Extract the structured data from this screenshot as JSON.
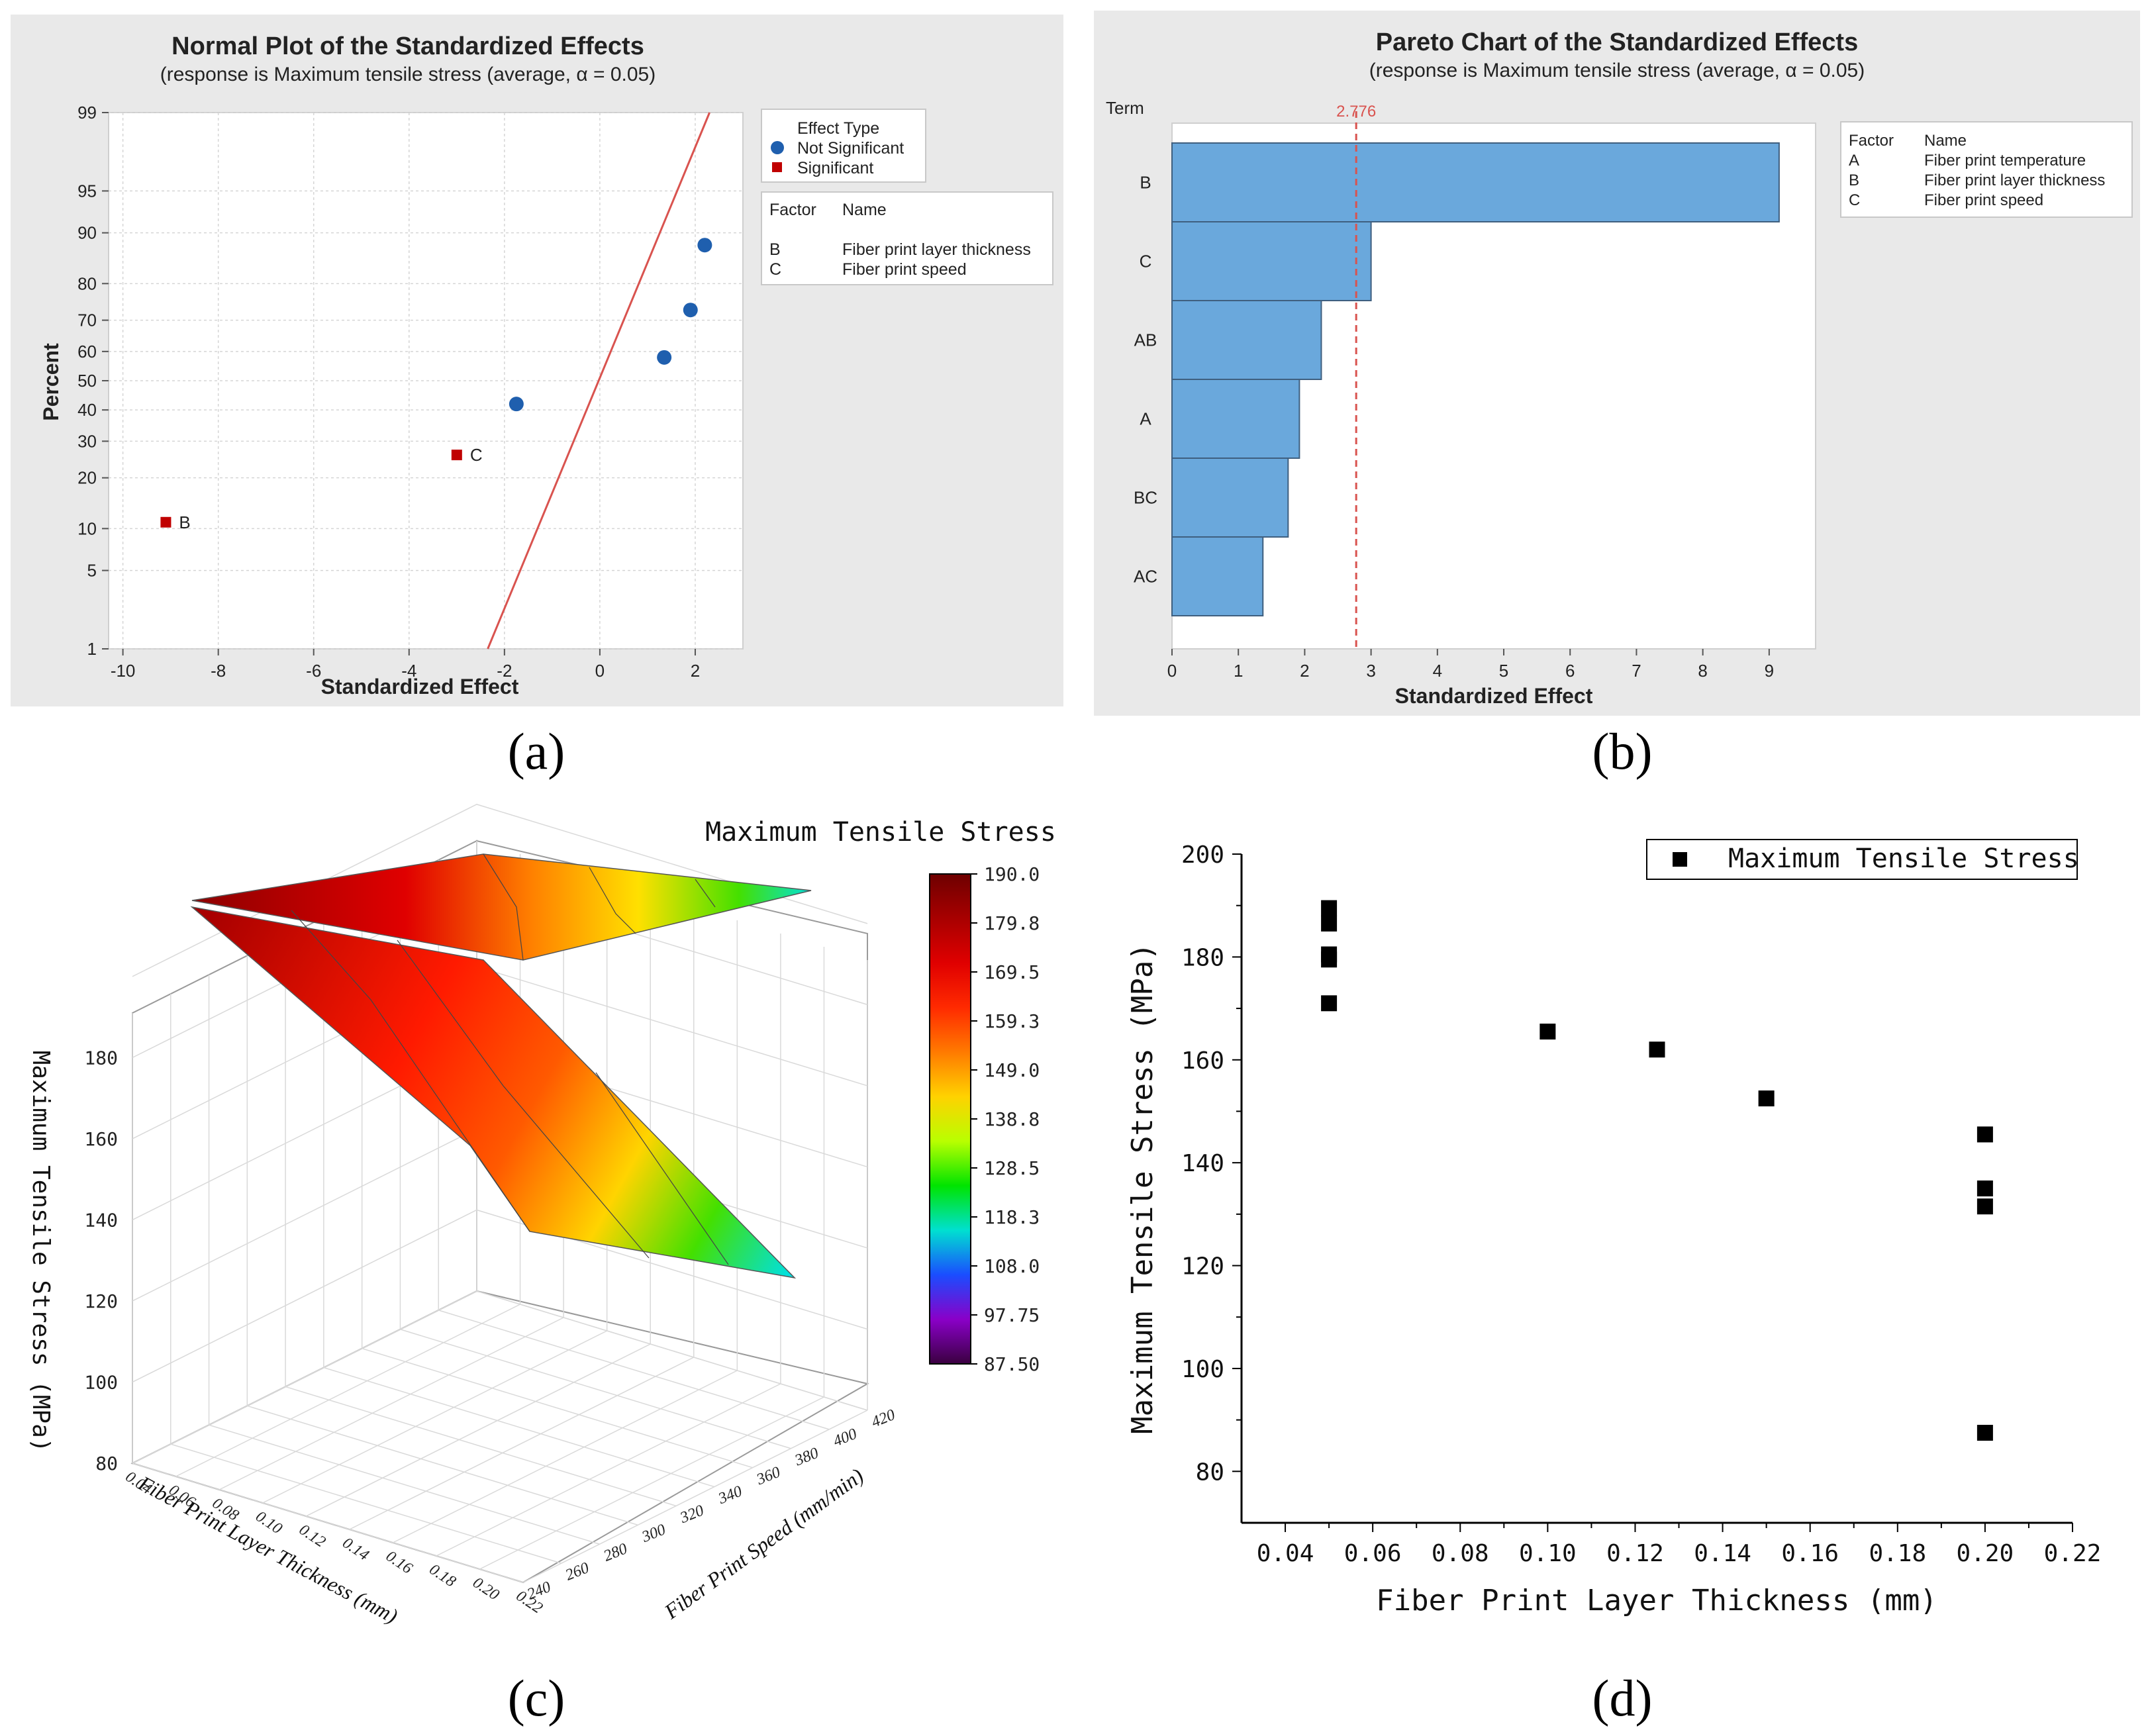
{
  "captions": {
    "a": "(a)",
    "b": "(b)",
    "c": "(c)",
    "d": "(d)"
  },
  "chart_data": [
    {
      "id": "a",
      "type": "scatter",
      "title": "Normal Plot of the Standardized Effects",
      "subtitle": "(response is Maximum tensile stress (average, α = 0.05)",
      "xlabel": "Standardized Effect",
      "ylabel": "Percent",
      "xlim": [
        -10.3,
        3.0
      ],
      "xticks": [
        -10,
        -8,
        -6,
        -4,
        -2,
        0,
        2
      ],
      "yticks": [
        1,
        5,
        10,
        20,
        30,
        40,
        50,
        60,
        70,
        80,
        90,
        95,
        99
      ],
      "reference_line": {
        "from": [
          -2.35,
          1
        ],
        "to": [
          2.3,
          99
        ],
        "color": "#d9534f"
      },
      "series": [
        {
          "name": "Not Significant",
          "marker": "circle",
          "color": "#1f5fae",
          "points": [
            {
              "x": -1.75,
              "y": 42,
              "label": ""
            },
            {
              "x": 1.35,
              "y": 58,
              "label": ""
            },
            {
              "x": 1.9,
              "y": 73,
              "label": ""
            },
            {
              "x": 2.2,
              "y": 88,
              "label": ""
            }
          ]
        },
        {
          "name": "Significant",
          "marker": "square",
          "color": "#c00000",
          "points": [
            {
              "x": -9.1,
              "y": 11,
              "label": "B"
            },
            {
              "x": -3.0,
              "y": 26,
              "label": "C"
            }
          ]
        }
      ],
      "legend_title": "Effect Type",
      "factor_table": {
        "header": [
          "Factor",
          "Name"
        ],
        "rows": [
          [
            "B",
            "Fiber print layer thickness"
          ],
          [
            "C",
            "Fiber print speed"
          ]
        ]
      }
    },
    {
      "id": "b",
      "type": "bar",
      "title": "Pareto Chart of the Standardized Effects",
      "subtitle": "(response is Maximum tensile stress (average, α = 0.05)",
      "xlabel": "Standardized Effect",
      "ylabel": "Term",
      "categories": [
        "B",
        "C",
        "AB",
        "A",
        "BC",
        "AC"
      ],
      "values": [
        9.15,
        3.0,
        2.25,
        1.92,
        1.75,
        1.37
      ],
      "xlim": [
        0,
        9.7
      ],
      "xticks": [
        0,
        1,
        2,
        3,
        4,
        5,
        6,
        7,
        8,
        9
      ],
      "reference_line": {
        "value": 2.776,
        "label": "2.776",
        "color": "#d9534f"
      },
      "bar_color": "#6aa8dc",
      "factor_table": {
        "header": [
          "Factor",
          "Name"
        ],
        "rows": [
          [
            "A",
            "Fiber print temperature"
          ],
          [
            "B",
            "Fiber print layer thickness"
          ],
          [
            "C",
            "Fiber print speed"
          ]
        ]
      }
    },
    {
      "id": "c",
      "type": "surface",
      "title": "Maximum Tensile Stress",
      "xlabel": "Fiber Print Layer Thickness (mm)",
      "ylabel": "Fiber Print Speed (mm/min)",
      "zlabel": "Maximum Tensile Stress (MPa)",
      "xticks": [
        "0.04",
        "0.06",
        "0.08",
        "0.10",
        "0.12",
        "0.14",
        "0.16",
        "0.18",
        "0.20",
        "0.22"
      ],
      "yticks": [
        "240",
        "260",
        "280",
        "300",
        "320",
        "340",
        "360",
        "380",
        "400",
        "420"
      ],
      "zticks": [
        "80",
        "100",
        "120",
        "140",
        "160",
        "180"
      ],
      "colorbar": {
        "labels": [
          "190.0",
          "179.8",
          "169.5",
          "159.3",
          "149.0",
          "138.8",
          "128.5",
          "118.3",
          "108.0",
          "97.75",
          "87.50"
        ],
        "colors": [
          "#6e0000",
          "#a80000",
          "#e00000",
          "#ff2a00",
          "#ff7a00",
          "#ffd200",
          "#b9ff00",
          "#00e400",
          "#00e0d0",
          "#1a4dff",
          "#8a00c8",
          "#3a0040"
        ]
      }
    },
    {
      "id": "d",
      "type": "scatter",
      "xlabel": "Fiber Print Layer Thickness (mm)",
      "ylabel": "Maximum Tensile Stress (MPa)",
      "xlim": [
        0.03,
        0.22
      ],
      "ylim": [
        70,
        200
      ],
      "xticks": [
        "0.04",
        "0.06",
        "0.08",
        "0.10",
        "0.12",
        "0.14",
        "0.16",
        "0.18",
        "0.20",
        "0.22"
      ],
      "yticks": [
        "80",
        "100",
        "120",
        "140",
        "160",
        "180",
        "200"
      ],
      "series": [
        {
          "name": "Maximum Tensile Stress",
          "points": [
            [
              0.05,
              189.5
            ],
            [
              0.05,
              186.5
            ],
            [
              0.05,
              180.5
            ],
            [
              0.05,
              179.5
            ],
            [
              0.05,
              171
            ],
            [
              0.1,
              165.5
            ],
            [
              0.125,
              162
            ],
            [
              0.15,
              152.5
            ],
            [
              0.2,
              145.5
            ],
            [
              0.2,
              135
            ],
            [
              0.2,
              131.5
            ],
            [
              0.2,
              87.5
            ]
          ]
        }
      ]
    }
  ]
}
